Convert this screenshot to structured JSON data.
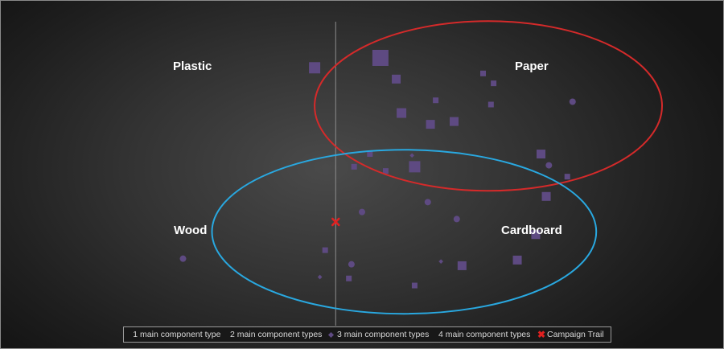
{
  "chart_data": {
    "type": "scatter",
    "title": "",
    "xlabel": "",
    "ylabel": "",
    "quadrant_labels": {
      "top_left": "Plastic",
      "top_right": "Paper",
      "bottom_left": "Wood",
      "bottom_right": "Cardboard"
    },
    "legend_position": "bottom",
    "series": [
      {
        "name": "1 main component type",
        "marker": "dot",
        "color": "#5e4a82",
        "points": [
          {
            "x": 0.81,
            "y": 0.4
          },
          {
            "x": 0.9,
            "y": 0.85
          },
          {
            "x": 0.35,
            "y": 0.14
          },
          {
            "x": -0.58,
            "y": -0.26
          },
          {
            "x": 0.1,
            "y": 0.07
          },
          {
            "x": 0.06,
            "y": -0.3
          },
          {
            "x": 0.46,
            "y": 0.02
          }
        ]
      },
      {
        "name": "2 main component types",
        "marker": "square-small",
        "color": "#5e4a82",
        "points": [
          {
            "x": 0.56,
            "y": 1.05
          },
          {
            "x": 0.6,
            "y": 0.98
          },
          {
            "x": 0.38,
            "y": 0.86
          },
          {
            "x": 0.59,
            "y": 0.83
          },
          {
            "x": 0.88,
            "y": 0.32
          },
          {
            "x": -0.04,
            "y": -0.2
          },
          {
            "x": 0.07,
            "y": 0.39
          },
          {
            "x": 0.13,
            "y": 0.48
          },
          {
            "x": 0.3,
            "y": -0.45
          },
          {
            "x": 0.19,
            "y": 0.36
          },
          {
            "x": 0.05,
            "y": -0.4
          }
        ]
      },
      {
        "name": "3 main component types",
        "marker": "diamond",
        "color": "#5e4a82",
        "points": [
          {
            "x": 0.29,
            "y": 0.47
          },
          {
            "x": -0.06,
            "y": -0.39
          },
          {
            "x": 0.4,
            "y": -0.28
          }
        ]
      },
      {
        "name": "4 main component types",
        "marker": "square-large",
        "color": "#5e4a82",
        "points": [
          {
            "x": -0.08,
            "y": 1.09
          },
          {
            "x": 0.17,
            "y": 1.16
          },
          {
            "x": 0.23,
            "y": 1.01
          },
          {
            "x": 0.36,
            "y": 0.69
          },
          {
            "x": 0.45,
            "y": 0.71
          },
          {
            "x": 0.78,
            "y": 0.48
          },
          {
            "x": 0.3,
            "y": 0.39
          },
          {
            "x": 0.8,
            "y": 0.18
          },
          {
            "x": 0.76,
            "y": -0.09
          },
          {
            "x": 0.69,
            "y": -0.27
          },
          {
            "x": 0.48,
            "y": -0.31
          },
          {
            "x": 0.25,
            "y": 0.77
          }
        ]
      },
      {
        "name": "Campaign Trail",
        "marker": "x",
        "color": "#e02020",
        "points": [
          {
            "x": 0.0,
            "y": 0.0
          }
        ]
      }
    ],
    "ellipses": [
      {
        "color": "#d42a2a",
        "label": "Paper",
        "cx": 0.58,
        "cy": 0.82,
        "rx": 0.66,
        "ry": 0.6
      },
      {
        "color": "#29a8e0",
        "label": "Cardboard",
        "cx": 0.26,
        "cy": -0.07,
        "rx": 0.73,
        "ry": 0.58
      }
    ],
    "xlim": [
      -1.15,
      1.35
    ],
    "ylim": [
      -0.7,
      1.45
    ],
    "grid": false
  }
}
